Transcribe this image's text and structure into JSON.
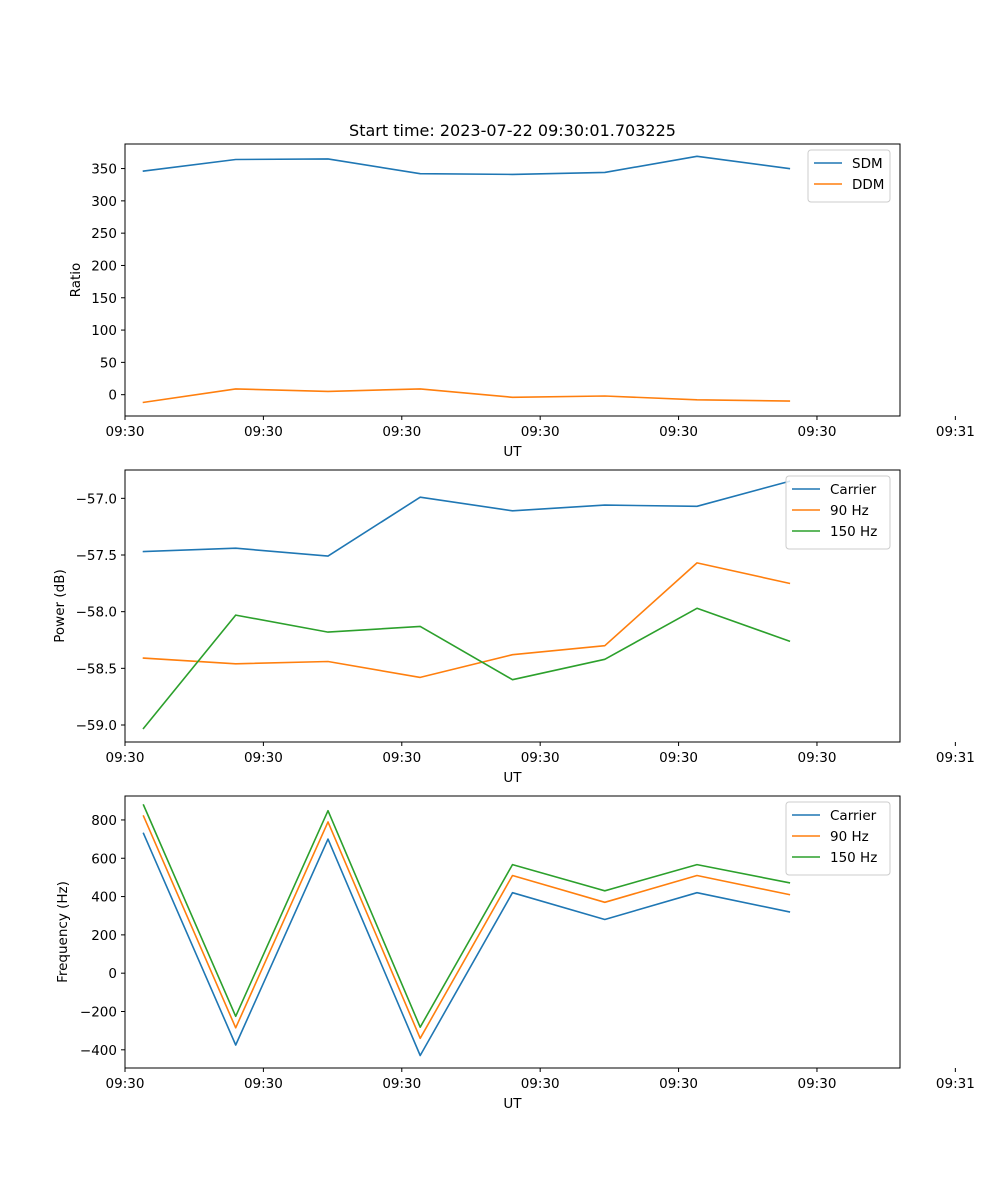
{
  "figure": {
    "title": "Start time: 2023-07-22 09:30:01.703225"
  },
  "chart_data": [
    {
      "type": "line",
      "title": "Start time: 2023-07-22 09:30:01.703225",
      "xlabel": "UT",
      "ylabel": "Ratio",
      "x": [
        1,
        2,
        3,
        4,
        5,
        6,
        7,
        8
      ],
      "xlim": [
        0.8,
        9.2
      ],
      "xticks": [
        {
          "v": 0.8,
          "label": "09:30"
        },
        {
          "v": 2.3,
          "label": "09:30"
        },
        {
          "v": 3.8,
          "label": "09:30"
        },
        {
          "v": 5.3,
          "label": "09:30"
        },
        {
          "v": 6.8,
          "label": "09:30"
        },
        {
          "v": 8.3,
          "label": "09:30"
        },
        {
          "v": 9.8,
          "label": "09:31"
        }
      ],
      "ylim": [
        -33,
        388
      ],
      "yticks": [
        0,
        50,
        100,
        150,
        200,
        250,
        300,
        350
      ],
      "series": [
        {
          "name": "SDM",
          "color": "#1f77b4",
          "values": [
            346,
            364,
            365,
            342,
            341,
            344,
            369,
            350
          ]
        },
        {
          "name": "DDM",
          "color": "#ff7f0e",
          "values": [
            -12,
            9,
            5,
            9,
            -4,
            -2,
            -8,
            -10
          ]
        }
      ],
      "legend": "top-right"
    },
    {
      "type": "line",
      "xlabel": "UT",
      "ylabel": "Power (dB)",
      "x": [
        1,
        2,
        3,
        4,
        5,
        6,
        7,
        8
      ],
      "xlim": [
        0.8,
        9.2
      ],
      "xticks": [
        {
          "v": 0.8,
          "label": "09:30"
        },
        {
          "v": 2.3,
          "label": "09:30"
        },
        {
          "v": 3.8,
          "label": "09:30"
        },
        {
          "v": 5.3,
          "label": "09:30"
        },
        {
          "v": 6.8,
          "label": "09:30"
        },
        {
          "v": 8.3,
          "label": "09:30"
        },
        {
          "v": 9.8,
          "label": "09:31"
        }
      ],
      "ylim": [
        -59.15,
        -56.75
      ],
      "yticks": [
        -59.0,
        -58.5,
        -58.0,
        -57.5,
        -57.0
      ],
      "ytick_labels": [
        "−59.0",
        "−58.5",
        "−58.0",
        "−57.5",
        "−57.0"
      ],
      "series": [
        {
          "name": "Carrier",
          "color": "#1f77b4",
          "values": [
            -57.47,
            -57.44,
            -57.51,
            -56.99,
            -57.11,
            -57.06,
            -57.07,
            -56.85
          ]
        },
        {
          "name": "90 Hz",
          "color": "#ff7f0e",
          "values": [
            -58.41,
            -58.46,
            -58.44,
            -58.58,
            -58.38,
            -58.3,
            -57.57,
            -57.75
          ]
        },
        {
          "name": "150 Hz",
          "color": "#2ca02c",
          "values": [
            -59.03,
            -58.03,
            -58.18,
            -58.13,
            -58.6,
            -58.42,
            -57.97,
            -58.26
          ]
        }
      ],
      "legend": "top-right"
    },
    {
      "type": "line",
      "xlabel": "UT",
      "ylabel": "Frequency (Hz)",
      "x": [
        1,
        2,
        3,
        4,
        5,
        6,
        7,
        8
      ],
      "xlim": [
        0.8,
        9.2
      ],
      "xticks": [
        {
          "v": 0.8,
          "label": "09:30"
        },
        {
          "v": 2.3,
          "label": "09:30"
        },
        {
          "v": 3.8,
          "label": "09:30"
        },
        {
          "v": 5.3,
          "label": "09:30"
        },
        {
          "v": 6.8,
          "label": "09:30"
        },
        {
          "v": 8.3,
          "label": "09:30"
        },
        {
          "v": 9.8,
          "label": "09:31"
        }
      ],
      "ylim": [
        -495,
        925
      ],
      "yticks": [
        -400,
        -200,
        0,
        200,
        400,
        600,
        800
      ],
      "ytick_labels": [
        "−400",
        "−200",
        "0",
        "200",
        "400",
        "600",
        "800"
      ],
      "series": [
        {
          "name": "Carrier",
          "color": "#1f77b4",
          "values": [
            730,
            -375,
            700,
            -430,
            420,
            280,
            420,
            320
          ]
        },
        {
          "name": "90 Hz",
          "color": "#ff7f0e",
          "values": [
            820,
            -285,
            790,
            -340,
            510,
            370,
            510,
            410
          ]
        },
        {
          "name": "150 Hz",
          "color": "#2ca02c",
          "values": [
            878,
            -225,
            848,
            -282,
            567,
            430,
            567,
            472
          ]
        }
      ],
      "legend": "top-right"
    }
  ]
}
